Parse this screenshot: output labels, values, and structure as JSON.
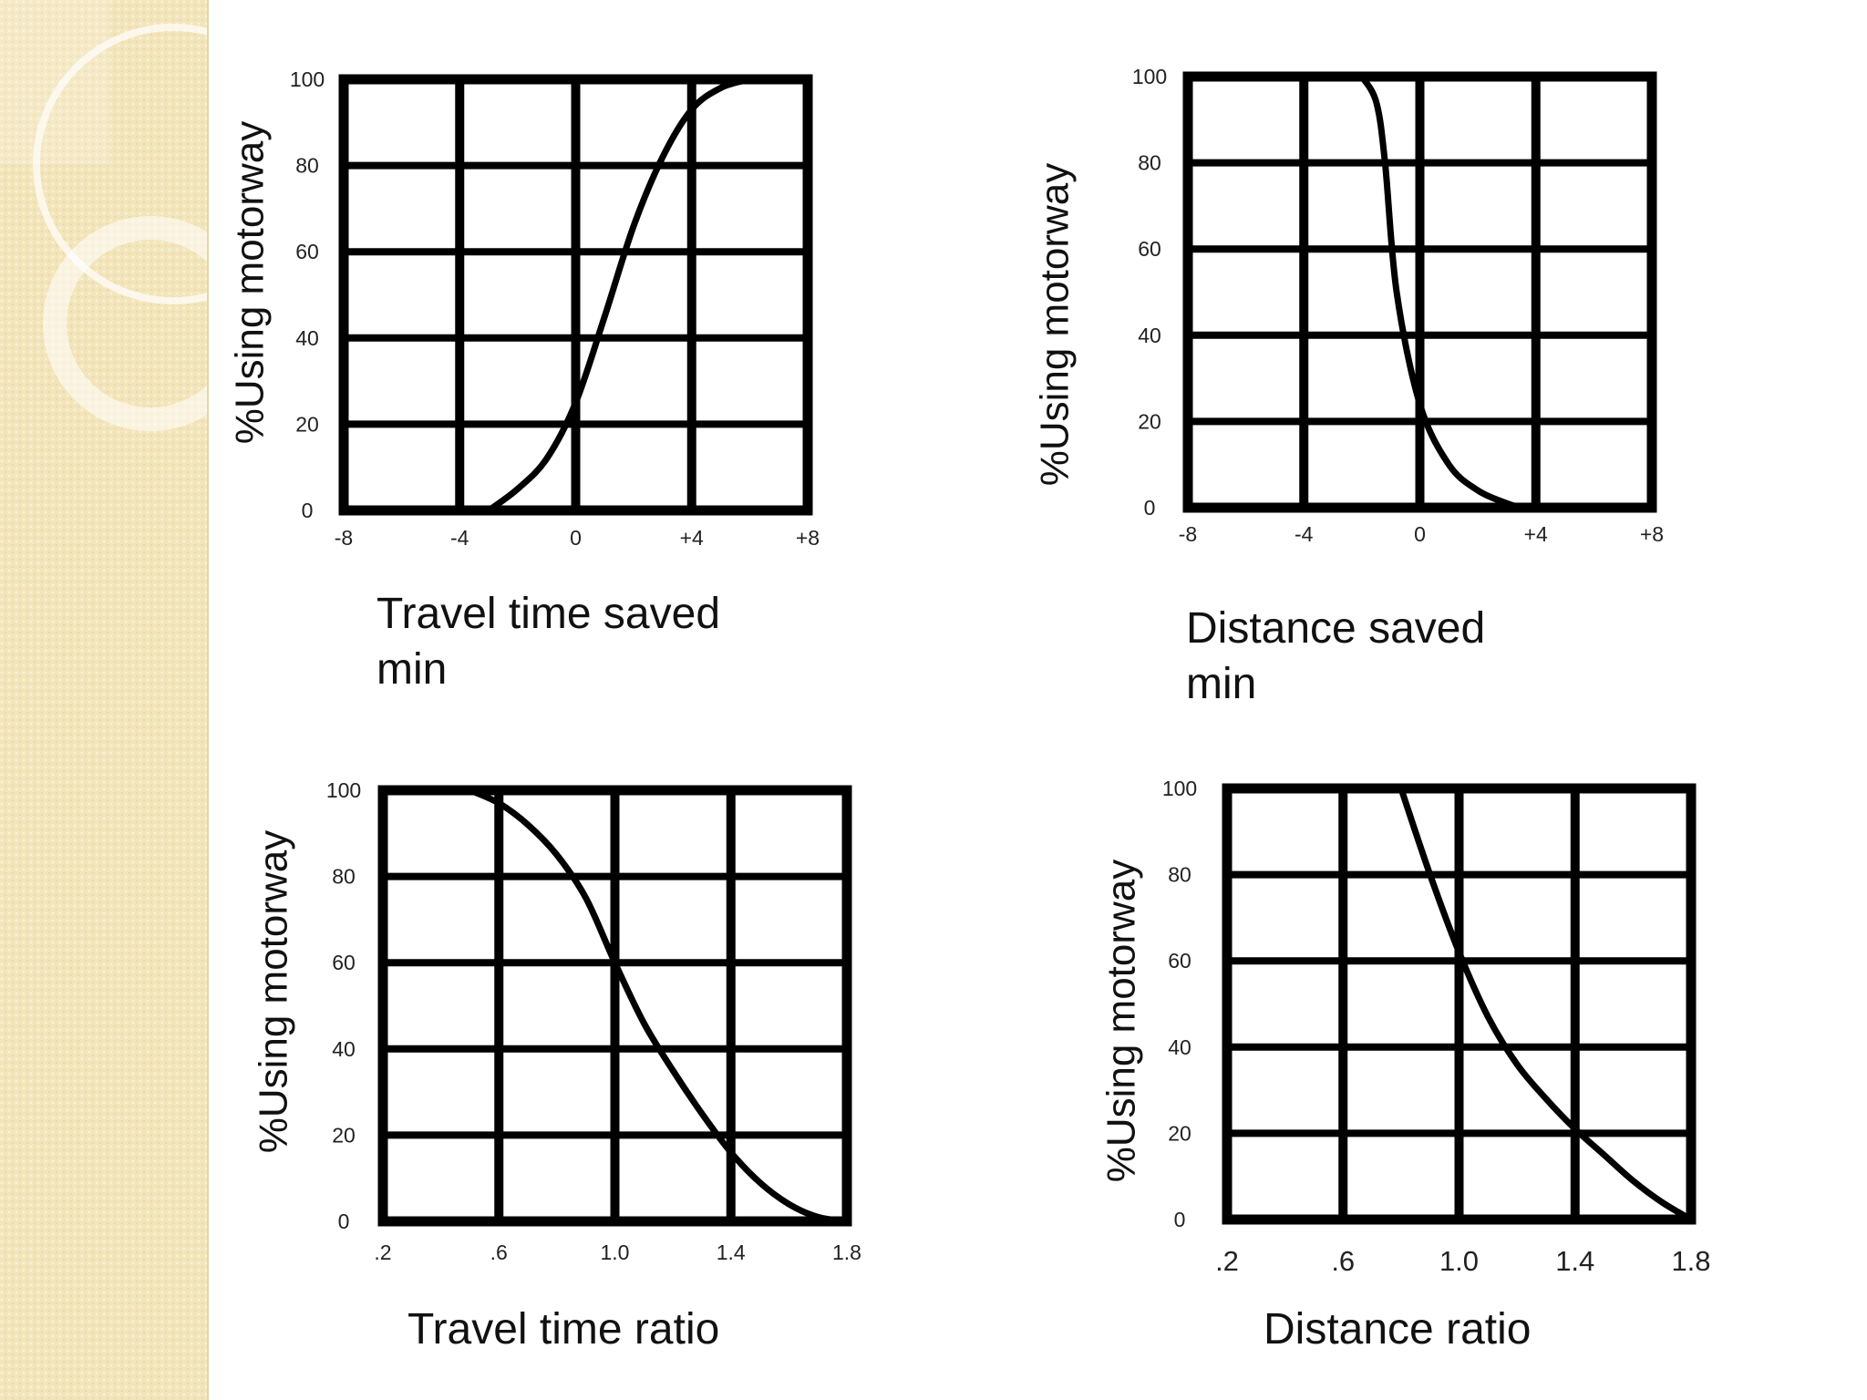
{
  "theme": {
    "sidebar_color": "#f3e5ba",
    "ring_color": "#ffffff",
    "grid_color": "#000000",
    "curve_color": "#000000",
    "caption_color": "#111111"
  },
  "chart_data": [
    {
      "type": "line",
      "ylabel": "%Using motorway",
      "xlabel": "Travel time saved min",
      "caption_lines": [
        "Travel time saved",
        "min"
      ],
      "x_ticks": [
        "-8",
        "-4",
        "0",
        "+4",
        "+8"
      ],
      "y_ticks": [
        "0",
        "20",
        "40",
        "60",
        "80",
        "100"
      ],
      "xlim": [
        -8,
        8
      ],
      "ylim": [
        0,
        100
      ],
      "grid": true,
      "series": [
        {
          "x": [
            -3,
            -2,
            -1,
            0,
            1,
            2,
            3,
            4,
            5,
            6
          ],
          "y": [
            0,
            5,
            12,
            25,
            45,
            66,
            82,
            93,
            98,
            100
          ]
        }
      ]
    },
    {
      "type": "line",
      "ylabel": "%Using motorway",
      "xlabel": "Distance saved min",
      "caption_lines": [
        "Distance saved",
        "min"
      ],
      "x_ticks": [
        "-8",
        "-4",
        "0",
        "+4",
        "+8"
      ],
      "y_ticks": [
        "0",
        "20",
        "40",
        "60",
        "80",
        "100"
      ],
      "xlim": [
        -8,
        8
      ],
      "ylim": [
        0,
        100
      ],
      "grid": true,
      "series": [
        {
          "x": [
            -2,
            -1.5,
            -1.2,
            -0.8,
            0,
            1,
            2,
            3,
            3.5
          ],
          "y": [
            100,
            94,
            80,
            50,
            24,
            10,
            4,
            1,
            0
          ]
        }
      ]
    },
    {
      "type": "line",
      "ylabel": "%Using motorway",
      "xlabel": "Travel time ratio",
      "caption_lines": [
        "Travel time ratio"
      ],
      "x_ticks": [
        ".2",
        ".6",
        "1.0",
        "1.4",
        "1.8"
      ],
      "y_ticks": [
        "0",
        "20",
        "40",
        "60",
        "80",
        "100"
      ],
      "xlim": [
        0.2,
        1.8
      ],
      "ylim": [
        0,
        100
      ],
      "grid": true,
      "series": [
        {
          "x": [
            0.5,
            0.6,
            0.7,
            0.8,
            0.9,
            1.0,
            1.1,
            1.2,
            1.3,
            1.4,
            1.5,
            1.6,
            1.7,
            1.8
          ],
          "y": [
            100,
            97,
            92,
            85,
            75,
            60,
            46,
            35,
            25,
            16,
            9,
            4,
            1,
            0
          ]
        }
      ]
    },
    {
      "type": "line",
      "ylabel": "%Using motorway",
      "xlabel": "Distance ratio",
      "caption_lines": [
        "Distance ratio"
      ],
      "x_ticks": [
        ".2",
        ".6",
        "1.0",
        "1.4",
        "1.8"
      ],
      "y_ticks": [
        "0",
        "20",
        "40",
        "60",
        "80",
        "100"
      ],
      "xlim": [
        0.2,
        1.8
      ],
      "ylim": [
        0,
        100
      ],
      "grid": true,
      "series": [
        {
          "x": [
            0.8,
            0.9,
            1.0,
            1.1,
            1.2,
            1.3,
            1.4,
            1.5,
            1.6,
            1.7,
            1.8
          ],
          "y": [
            100,
            80,
            62,
            47,
            36,
            28,
            21,
            15,
            9,
            4,
            0
          ]
        }
      ]
    }
  ]
}
